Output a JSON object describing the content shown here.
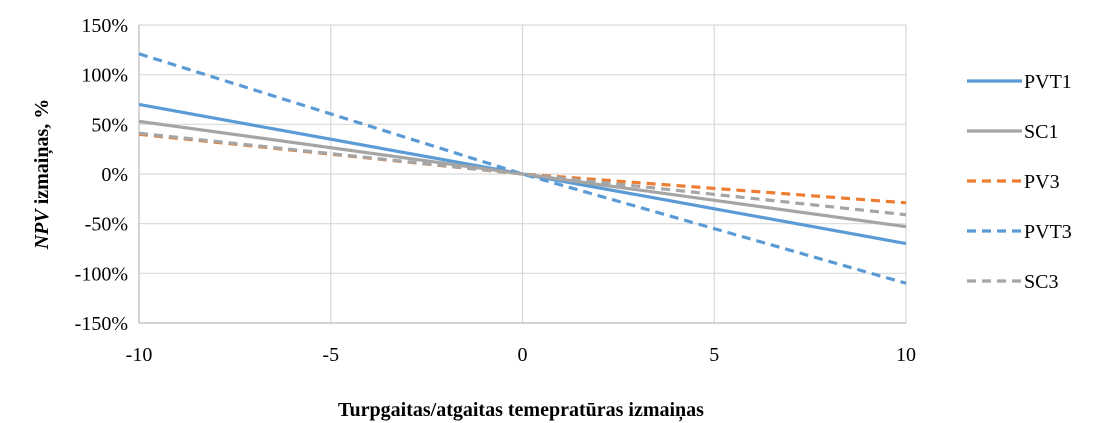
{
  "chart_data": {
    "type": "line",
    "title": "",
    "xlabel": "Turpgaitas/atgaitas temepratūras izmaiņas",
    "ylabel_italic": "NPV",
    "ylabel_rest": " izmaiņas, %",
    "x": [
      -10,
      0,
      10
    ],
    "xlim": [
      -10,
      10
    ],
    "ylim": [
      -150,
      150
    ],
    "x_ticks": [
      -10,
      -5,
      0,
      5,
      10
    ],
    "x_tick_labels": [
      "-10",
      "-5",
      "0",
      "5",
      "10"
    ],
    "y_ticks": [
      -150,
      -100,
      -50,
      0,
      50,
      100,
      150
    ],
    "y_tick_labels": [
      "-150%",
      "-100%",
      "-50%",
      "0%",
      "50%",
      "100%",
      "150%"
    ],
    "grid": true,
    "legend_position": "right",
    "series": [
      {
        "name": "PVT1",
        "values": [
          70,
          0,
          -70
        ],
        "color": "#5B9BD5",
        "dash": "solid"
      },
      {
        "name": "SC1",
        "values": [
          53,
          0,
          -53
        ],
        "color": "#A5A5A5",
        "dash": "solid"
      },
      {
        "name": "PV3",
        "values": [
          40,
          0,
          -29
        ],
        "color": "#ED7D31",
        "dash": "dashed"
      },
      {
        "name": "PVT3",
        "values": [
          121,
          0,
          -110
        ],
        "color": "#5B9BD5",
        "dash": "dashed"
      },
      {
        "name": "SC3",
        "values": [
          41,
          0,
          -41
        ],
        "color": "#A5A5A5",
        "dash": "dashed"
      }
    ]
  }
}
